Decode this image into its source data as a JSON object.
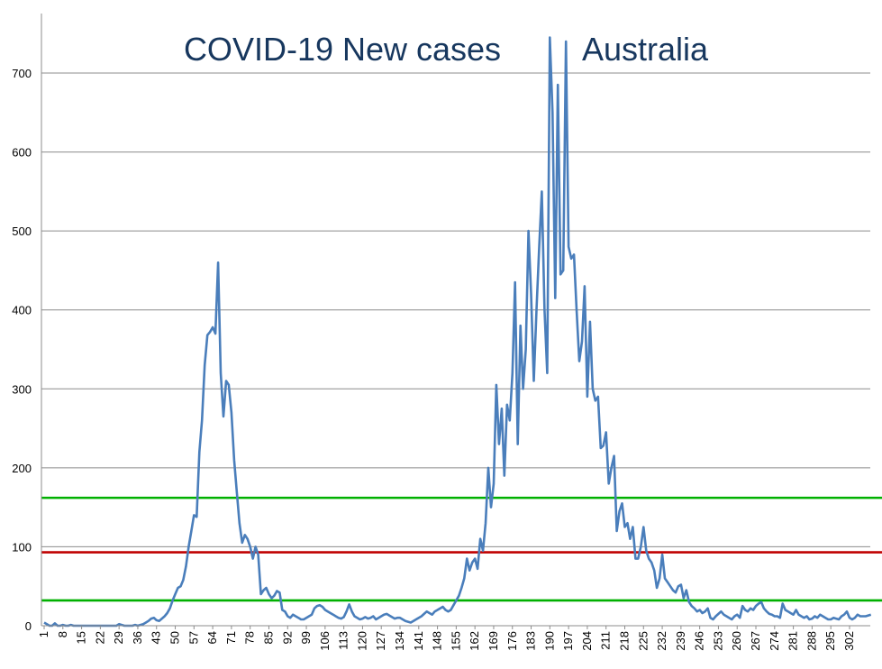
{
  "chart_data": {
    "type": "line",
    "title_left": "COVID-19 New cases",
    "title_right": "Australia",
    "xlabel": "",
    "ylabel": "",
    "ylim": [
      0,
      760
    ],
    "yticks": [
      0,
      100,
      200,
      300,
      400,
      500,
      600,
      700
    ],
    "xtick_labels": [
      "1",
      "8",
      "15",
      "22",
      "29",
      "36",
      "43",
      "50",
      "57",
      "64",
      "71",
      "78",
      "85",
      "92",
      "99",
      "106",
      "113",
      "120",
      "127",
      "134",
      "141",
      "148",
      "155",
      "162",
      "169",
      "176",
      "183",
      "190",
      "197",
      "204",
      "211",
      "218",
      "225",
      "232",
      "239",
      "246",
      "253",
      "260",
      "267",
      "274",
      "281",
      "288",
      "295",
      "302"
    ],
    "grid": true,
    "line_color": "#4a7ebb",
    "reference_lines": [
      {
        "value": 162,
        "color": "#00b000"
      },
      {
        "value": 93,
        "color": "#c00000"
      },
      {
        "value": 32,
        "color": "#00b000"
      }
    ],
    "series": [
      {
        "x_start": 1,
        "values": [
          4,
          2,
          0,
          0,
          3,
          0,
          0,
          1,
          0,
          0,
          1,
          0,
          0,
          0,
          0,
          0,
          0,
          0,
          0,
          0,
          0,
          0,
          0,
          0,
          0,
          0,
          0,
          0,
          2,
          1,
          0,
          0,
          0,
          0,
          1,
          0,
          1,
          2,
          4,
          6,
          9,
          10,
          7,
          6,
          9,
          12,
          16,
          22,
          32,
          40,
          48,
          50,
          58,
          75,
          100,
          120,
          140,
          138,
          220,
          260,
          330,
          368,
          372,
          378,
          370,
          460,
          320,
          265,
          310,
          305,
          270,
          210,
          170,
          130,
          105,
          115,
          110,
          100,
          85,
          100,
          90,
          40,
          45,
          48,
          40,
          35,
          38,
          44,
          42,
          20,
          18,
          12,
          10,
          14,
          12,
          10,
          8,
          8,
          10,
          12,
          14,
          22,
          25,
          26,
          24,
          20,
          18,
          16,
          14,
          12,
          10,
          9,
          11,
          18,
          27,
          18,
          12,
          10,
          8,
          9,
          11,
          9,
          10,
          12,
          8,
          10,
          12,
          14,
          15,
          13,
          11,
          9,
          10,
          10,
          8,
          6,
          5,
          4,
          6,
          8,
          10,
          12,
          15,
          18,
          16,
          14,
          18,
          20,
          22,
          24,
          20,
          18,
          20,
          26,
          32,
          38,
          48,
          60,
          85,
          70,
          80,
          85,
          72,
          110,
          95,
          130,
          200,
          150,
          180,
          305,
          230,
          275,
          190,
          280,
          260,
          320,
          435,
          230,
          380,
          300,
          350,
          500,
          420,
          310,
          400,
          480,
          550,
          400,
          320,
          745,
          650,
          415,
          685,
          445,
          450,
          740,
          480,
          465,
          470,
          400,
          335,
          360,
          430,
          290,
          385,
          300,
          285,
          290,
          225,
          228,
          245,
          180,
          200,
          215,
          120,
          145,
          155,
          125,
          130,
          110,
          125,
          85,
          85,
          100,
          125,
          95,
          85,
          80,
          70,
          48,
          60,
          90,
          60,
          55,
          50,
          45,
          42,
          50,
          52,
          35,
          45,
          30,
          25,
          22,
          18,
          20,
          16,
          18,
          22,
          10,
          8,
          12,
          15,
          18,
          14,
          12,
          10,
          8,
          12,
          14,
          10,
          25,
          20,
          18,
          22,
          20,
          25,
          28,
          30,
          22,
          18,
          15,
          14,
          12,
          12,
          10,
          28,
          20,
          18,
          16,
          14,
          20,
          14,
          12,
          10,
          12,
          8,
          9,
          12,
          10,
          14,
          12,
          10,
          8,
          8,
          10,
          9,
          8,
          12,
          14,
          18,
          10,
          8,
          10,
          14,
          12,
          12,
          12,
          13,
          14
        ]
      }
    ]
  }
}
